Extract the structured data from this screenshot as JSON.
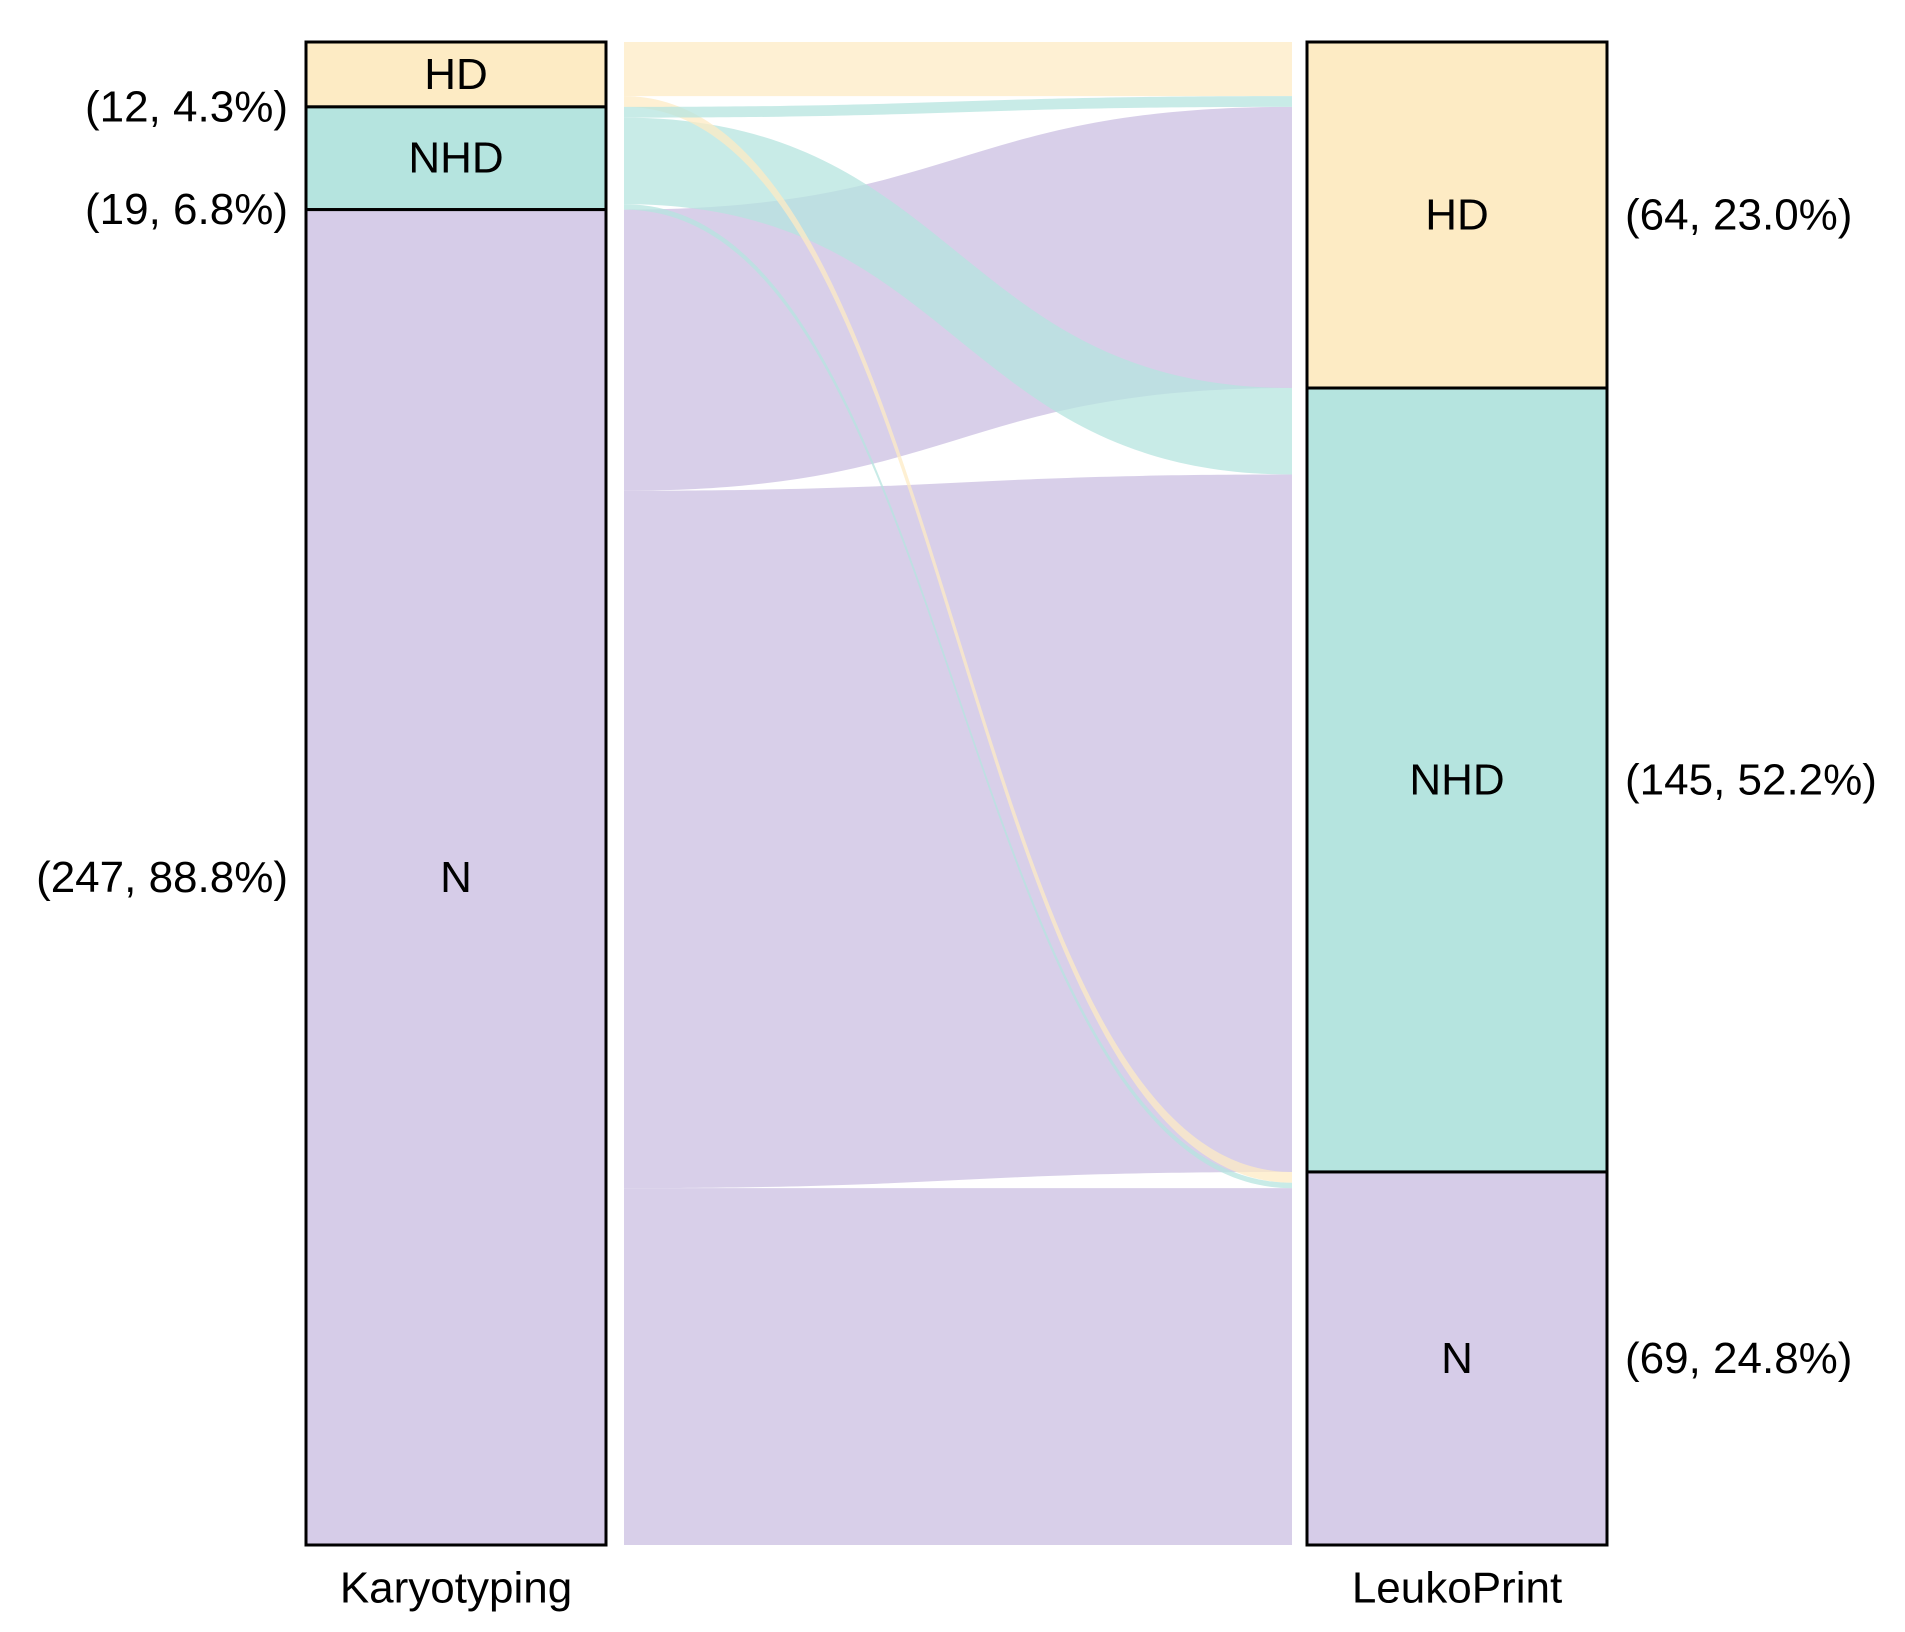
{
  "chart_data": {
    "type": "sankey",
    "title": "",
    "axes": [
      {
        "name": "Karyotyping",
        "nodes": [
          {
            "label": "HD",
            "count": 12,
            "percent_label": "(12, 4.3%)",
            "color": "#FDEBC4"
          },
          {
            "label": "NHD",
            "count": 19,
            "percent_label": "(19, 6.8%)",
            "color": "#B5E4DF"
          },
          {
            "label": "N",
            "count": 247,
            "percent_label": "(247, 88.8%)",
            "color": "#D6CCE8"
          }
        ]
      },
      {
        "name": "LeukoPrint",
        "nodes": [
          {
            "label": "HD",
            "count": 64,
            "percent_label": "(64, 23.0%)",
            "color": "#FDEBC4"
          },
          {
            "label": "NHD",
            "count": 145,
            "percent_label": "(145, 52.2%)",
            "color": "#B5E4DF"
          },
          {
            "label": "N",
            "count": 69,
            "percent_label": "(69, 24.8%)",
            "color": "#D6CCE8"
          }
        ]
      }
    ],
    "flows": [
      {
        "from": "HD",
        "to": "HD",
        "value": 10
      },
      {
        "from": "HD",
        "to": "N",
        "value": 2
      },
      {
        "from": "NHD",
        "to": "HD",
        "value": 2
      },
      {
        "from": "NHD",
        "to": "NHD",
        "value": 16
      },
      {
        "from": "NHD",
        "to": "N",
        "value": 1
      },
      {
        "from": "N",
        "to": "HD",
        "value": 52
      },
      {
        "from": "N",
        "to": "NHD",
        "value": 129
      },
      {
        "from": "N",
        "to": "N",
        "value": 66
      }
    ],
    "total": 278
  }
}
